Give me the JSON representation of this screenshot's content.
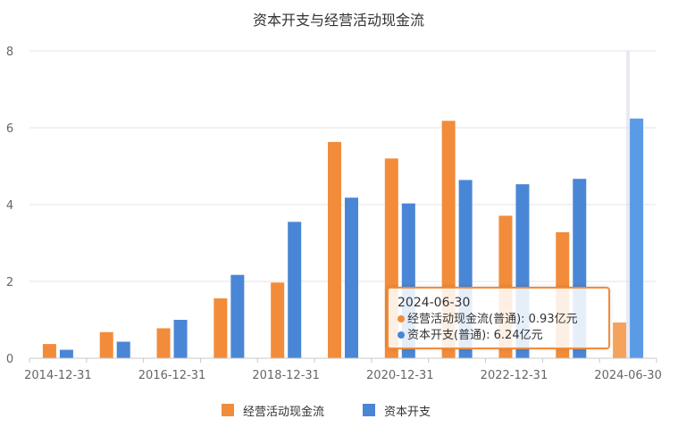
{
  "chart_data": {
    "type": "bar",
    "title": "资本开支与经营活动现金流",
    "categories": [
      "2014-12-31",
      "2015-12-31",
      "2016-12-31",
      "2017-12-31",
      "2018-12-31",
      "2019-12-31",
      "2020-12-31",
      "2021-12-31",
      "2022-12-31",
      "2023-12-31",
      "2024-06-30"
    ],
    "x_tick_labels": [
      "2014-12-31",
      "2016-12-31",
      "2018-12-31",
      "2020-12-31",
      "2022-12-31",
      "2024-06-30"
    ],
    "ylim": [
      0,
      8
    ],
    "y_ticks": [
      "0",
      "2",
      "4",
      "6",
      "8"
    ],
    "grid": true,
    "legend_position": "bottom",
    "series": [
      {
        "name": "经营活动现金流",
        "color": "#f28c3a",
        "values": [
          0.37,
          0.68,
          0.78,
          1.56,
          1.97,
          5.63,
          5.2,
          6.18,
          3.71,
          3.28,
          0.93
        ]
      },
      {
        "name": "资本开支",
        "color": "#4a86d6",
        "values": [
          0.22,
          0.43,
          1.0,
          2.17,
          3.55,
          4.18,
          4.03,
          4.64,
          4.53,
          4.67,
          6.24
        ]
      }
    ]
  },
  "tooltip": {
    "date": "2024-06-30",
    "row1": "经营活动现金流(普通): 0.93亿元",
    "row2": "资本开支(普通): 6.24亿元"
  }
}
